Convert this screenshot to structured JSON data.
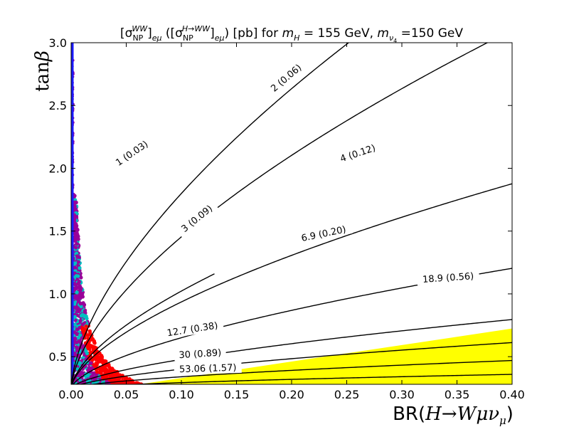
{
  "chart_data": {
    "type": "contour",
    "title": "[σ_NP^WW]_eμ ([σ_NP^H→WW]_eμ) [pb] for m_H = 155 GeV, m_ν4 =150 GeV",
    "title_parts": {
      "prefix": "[σ",
      "sub1": "NP",
      "sup1": "WW",
      "sub_em1": "eμ",
      "paren_open": " ([σ",
      "sub2": "NP",
      "sup2": "H→WW",
      "sub_em2": "eμ",
      "close": ") [pb] for ",
      "mh": "m",
      "mh_sub": "H",
      "mh_val": " = 155 GeV, ",
      "mnu": "m",
      "mnu_sub": "ν",
      "mnu_sub2": "4",
      "mnu_val": " =150 GeV"
    },
    "xlabel": "BR(H→Wμν_μ)",
    "xlabel_parts": {
      "pre": "BR(",
      "H": "H",
      "arrow": "→",
      "W": "Wμν",
      "mu": "μ",
      "post": ")"
    },
    "ylabel": "tanβ",
    "ylabel_parts": {
      "tan": "tan",
      "beta": "β"
    },
    "xlim": [
      0.0,
      0.4
    ],
    "ylim": [
      0.28,
      3.0
    ],
    "xticks": [
      {
        "value": 0.0,
        "label": "0.00"
      },
      {
        "value": 0.05,
        "label": "0.05"
      },
      {
        "value": 0.1,
        "label": "0.10"
      },
      {
        "value": 0.15,
        "label": "0.15"
      },
      {
        "value": 0.2,
        "label": "0.20"
      },
      {
        "value": 0.25,
        "label": "0.25"
      },
      {
        "value": 0.3,
        "label": "0.30"
      },
      {
        "value": 0.35,
        "label": "0.35"
      },
      {
        "value": 0.4,
        "label": "0.40"
      }
    ],
    "yticks": [
      {
        "value": 0.5,
        "label": "0.5"
      },
      {
        "value": 1.0,
        "label": "1.0"
      },
      {
        "value": 1.5,
        "label": "1.5"
      },
      {
        "value": 2.0,
        "label": "2.0"
      },
      {
        "value": 2.5,
        "label": "2.5"
      },
      {
        "value": 3.0,
        "label": "3.0"
      }
    ],
    "grid": false,
    "contours": [
      {
        "label": "1 (0.03)",
        "k": 4.0,
        "label_x": 0.055,
        "label_y": 2.12
      },
      {
        "label": "2 (0.06)",
        "k": 4.0,
        "label_x": 0.195,
        "label_y": 2.72
      },
      {
        "label": "3 (0.09)",
        "k": 4.0,
        "label_x": 0.114,
        "label_y": 1.6
      },
      {
        "label": "4 (0.12)",
        "k": 4.0,
        "label_x": 0.26,
        "label_y": 2.12
      },
      {
        "label": "6.9 (0.20)",
        "k": 4.0,
        "label_x": 0.229,
        "label_y": 1.48
      },
      {
        "label": "18.9 (0.56)",
        "k": 4.0,
        "label_x": 0.342,
        "label_y": 1.13
      },
      {
        "label": "12.7 (0.38)",
        "k": 4.0,
        "label_x": 0.11,
        "label_y": 0.72
      },
      {
        "label": "30 (0.89)",
        "k": 4.0,
        "label_x": 0.117,
        "label_y": 0.524
      },
      {
        "label": "53.06 (1.57)",
        "k": 4.0,
        "label_x": 0.124,
        "label_y": 0.408
      }
    ],
    "contour_curves": [
      {
        "name": "1 (0.03)",
        "a": 0.45,
        "c": 0.245,
        "xmax": 0.13
      },
      {
        "name": "2 (0.06)",
        "a": 0.9,
        "c": 0.245,
        "xmax": 0.4
      },
      {
        "name": "3 (0.09)",
        "a": 0.7,
        "c": 0.245,
        "xmax": 0.4
      },
      {
        "name": "4 (0.12)",
        "a": 0.4,
        "c": 0.245,
        "xmax": 0.4
      },
      {
        "name": "6.9 (0.20)",
        "a": 0.235,
        "c": 0.245,
        "xmax": 0.4
      },
      {
        "name": "18.9 (0.56)",
        "a": 0.09,
        "c": 0.245,
        "xmax": 0.4
      },
      {
        "name": "12.7 (0.38)",
        "a": 0.135,
        "c": 0.245,
        "xmax": 0.4
      },
      {
        "name": "30 (0.89)",
        "a": 0.055,
        "c": 0.245,
        "xmax": 0.4
      },
      {
        "name": "53.06 (1.57)",
        "a": 0.028,
        "c": 0.245,
        "xmax": 0.4
      }
    ],
    "excluded_region": {
      "color": "#ffff00",
      "boundary": [
        [
          0.062,
          0.28
        ],
        [
          0.4,
          0.724
        ]
      ]
    },
    "vertical_band": {
      "color": "#1a1aff",
      "x": 0.0,
      "from_y": 0.28,
      "to_y": 3.0
    },
    "scatter_colors": [
      "#ff0000",
      "#990099",
      "#00c0c0"
    ]
  }
}
